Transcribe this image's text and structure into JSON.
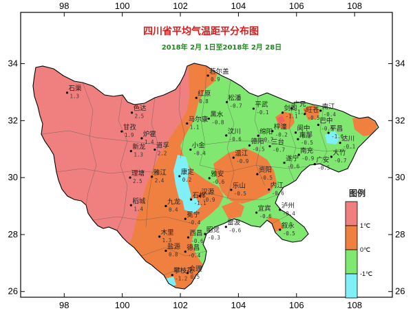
{
  "title": "四川省平均气温距平分布图",
  "subtitle": "2018年 2月 1日至2018年 2月 28日",
  "axes": {
    "x_ticks": [
      {
        "value": 98,
        "label": "98"
      },
      {
        "value": 100,
        "label": "100"
      },
      {
        "value": 102,
        "label": "102"
      },
      {
        "value": 104,
        "label": "104"
      },
      {
        "value": 106,
        "label": "106"
      },
      {
        "value": 108,
        "label": "108"
      }
    ],
    "y_ticks": [
      {
        "value": 26,
        "label": "26"
      },
      {
        "value": 28,
        "label": "28"
      },
      {
        "value": 30,
        "label": "30"
      },
      {
        "value": 32,
        "label": "32"
      },
      {
        "value": 34,
        "label": "34"
      }
    ],
    "xlim": [
      96.5,
      109.3
    ],
    "ylim": [
      25.8,
      35.8
    ]
  },
  "legend": {
    "title": "图例",
    "position": "right",
    "items": [
      {
        "label": "1℃",
        "color": "#f08080"
      },
      {
        "label": "0℃",
        "color": "#f08040"
      },
      {
        "label": "-1℃",
        "color": "#80e870"
      },
      {
        "label": "",
        "color": "#80f0f8"
      }
    ]
  },
  "colors": {
    "warm_high": "#f08080",
    "warm": "#f08040",
    "normal": "#80e870",
    "cool": "#80f0f8",
    "frame": "#000000"
  },
  "stations": [
    {
      "name": "若尔盖",
      "value": "0.9",
      "lon": 102.95,
      "lat": 33.58
    },
    {
      "name": "石渠",
      "value": "1.3",
      "lon": 98.1,
      "lat": 32.98
    },
    {
      "name": "色达",
      "value": "2.5",
      "lon": 100.33,
      "lat": 32.28
    },
    {
      "name": "红原",
      "value": "0.8",
      "lon": 102.55,
      "lat": 32.8
    },
    {
      "name": "松潘",
      "value": "-0.7",
      "lon": 103.6,
      "lat": 32.65
    },
    {
      "name": "甘孜",
      "value": "1.9",
      "lon": 99.98,
      "lat": 31.62
    },
    {
      "name": "马尔康",
      "value": "1.1",
      "lon": 102.23,
      "lat": 31.9
    },
    {
      "name": "黑水",
      "value": "-0.8",
      "lon": 102.98,
      "lat": 32.07
    },
    {
      "name": "炉霍",
      "value": "1.4",
      "lon": 100.67,
      "lat": 31.38
    },
    {
      "name": "新龙",
      "value": "1.3",
      "lon": 100.3,
      "lat": 30.93
    },
    {
      "name": "道孚",
      "value": "2.2",
      "lon": 101.12,
      "lat": 30.98
    },
    {
      "name": "小金",
      "value": "-0.4",
      "lon": 102.35,
      "lat": 30.98
    },
    {
      "name": "汶川",
      "value": "-0.6",
      "lon": 103.58,
      "lat": 31.48
    },
    {
      "name": "理塘",
      "value": "2.5",
      "lon": 100.27,
      "lat": 30.0
    },
    {
      "name": "雅江",
      "value": "2.4",
      "lon": 101.02,
      "lat": 30.03
    },
    {
      "name": "康定",
      "value": "0.2",
      "lon": 101.97,
      "lat": 30.05
    },
    {
      "name": "雅安",
      "value": "-0.6",
      "lon": 103.0,
      "lat": 29.98
    },
    {
      "name": "稻城",
      "value": "1.4",
      "lon": 100.3,
      "lat": 29.03
    },
    {
      "name": "九龙",
      "value": "0.4",
      "lon": 101.5,
      "lat": 29.0
    },
    {
      "name": "石棉",
      "value": "-1.1",
      "lon": 102.37,
      "lat": 29.23
    },
    {
      "name": "汉源",
      "value": "-0.9",
      "lon": 102.67,
      "lat": 29.35
    },
    {
      "name": "乐山",
      "value": "-0.5",
      "lon": 103.75,
      "lat": 29.57
    },
    {
      "name": "木里",
      "value": "1.3",
      "lon": 101.28,
      "lat": 27.93
    },
    {
      "name": "冕宁",
      "value": "-0.4",
      "lon": 102.17,
      "lat": 28.55
    },
    {
      "name": "西昌",
      "value": "-0.6",
      "lon": 102.27,
      "lat": 27.9
    },
    {
      "name": "昭觉",
      "value": "-0.3",
      "lon": 102.85,
      "lat": 28.02
    },
    {
      "name": "雷波",
      "value": "-0.6",
      "lon": 103.57,
      "lat": 28.27
    },
    {
      "name": "盐源",
      "value": "0.8",
      "lon": 101.5,
      "lat": 27.43
    },
    {
      "name": "德昌",
      "value": "-0.4",
      "lon": 102.17,
      "lat": 27.4
    },
    {
      "name": "会理",
      "value": "0.5",
      "lon": 102.25,
      "lat": 26.65
    },
    {
      "name": "攀枝花",
      "value": "-1.2",
      "lon": 101.72,
      "lat": 26.58
    },
    {
      "name": "平武",
      "value": "-0.1",
      "lon": 104.52,
      "lat": 32.42
    },
    {
      "name": "广元",
      "value": "-1.1",
      "lon": 105.83,
      "lat": 32.43
    },
    {
      "name": "旺苍",
      "value": "-0.5",
      "lon": 106.28,
      "lat": 32.23
    },
    {
      "name": "南江",
      "value": "-0.4",
      "lon": 106.83,
      "lat": 32.35
    },
    {
      "name": "剑阁",
      "value": "-1.1",
      "lon": 105.52,
      "lat": 32.28
    },
    {
      "name": "巴中",
      "value": "-0.5",
      "lon": 106.75,
      "lat": 31.85
    },
    {
      "name": "平昌",
      "value": "-1.6",
      "lon": 107.1,
      "lat": 31.57
    },
    {
      "name": "绵阳",
      "value": "-0.7",
      "lon": 104.68,
      "lat": 31.47
    },
    {
      "name": "梓潼",
      "value": "-0.2",
      "lon": 105.17,
      "lat": 31.63
    },
    {
      "name": "阆中",
      "value": "-0.2",
      "lon": 105.97,
      "lat": 31.58
    },
    {
      "name": "达川",
      "value": "-0.1",
      "lon": 107.5,
      "lat": 31.22
    },
    {
      "name": "德阳",
      "value": "-0.5",
      "lon": 104.38,
      "lat": 31.13
    },
    {
      "name": "三台",
      "value": "-0.7",
      "lon": 105.08,
      "lat": 31.1
    },
    {
      "name": "南部",
      "value": "-0.5",
      "lon": 106.05,
      "lat": 31.35
    },
    {
      "name": "南充",
      "value": "-0.9",
      "lon": 106.08,
      "lat": 30.8
    },
    {
      "name": "广安",
      "value": "-0.5",
      "lon": 106.63,
      "lat": 30.47
    },
    {
      "name": "大竹",
      "value": "-0.7",
      "lon": 107.2,
      "lat": 30.73
    },
    {
      "name": "温江",
      "value": "-0.9",
      "lon": 103.83,
      "lat": 30.7
    },
    {
      "name": "遂宁",
      "value": "-0.6",
      "lon": 105.58,
      "lat": 30.52
    },
    {
      "name": "资阳",
      "value": "-0.5",
      "lon": 104.65,
      "lat": 30.12
    },
    {
      "name": "内江",
      "value": "-0.6",
      "lon": 105.05,
      "lat": 29.58
    },
    {
      "name": "宜宾",
      "value": "-0.6",
      "lon": 104.62,
      "lat": 28.77
    },
    {
      "name": "泸州",
      "value": "-0.4",
      "lon": 105.43,
      "lat": 28.87
    },
    {
      "name": "叙永",
      "value": "-0.5",
      "lon": 105.43,
      "lat": 28.17
    }
  ]
}
